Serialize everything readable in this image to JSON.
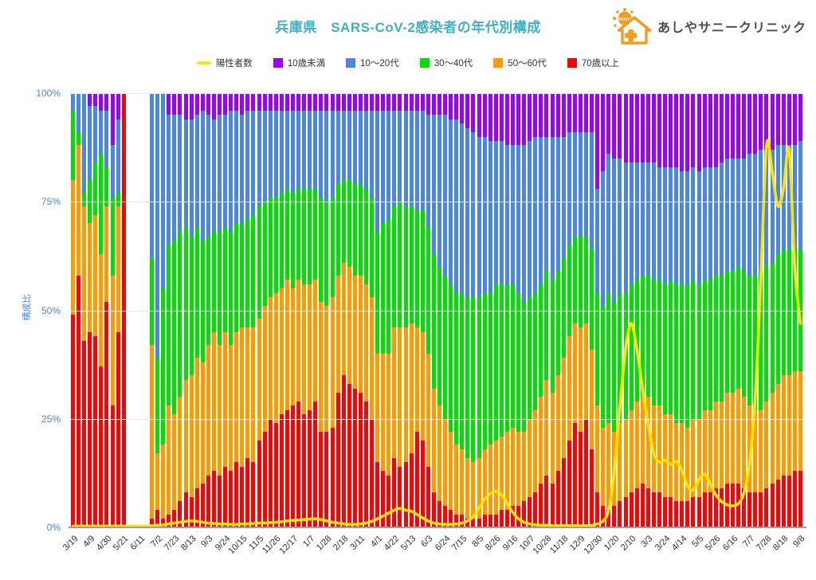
{
  "page": {
    "title": "兵庫県　SARS-CoV-2感染者の年代別構成"
  },
  "logo": {
    "text": "あしやサニークリニック",
    "sun_text": "Sunny",
    "icon_color": "#f29c1f",
    "text_color": "#4c4c4c"
  },
  "legend": {
    "items": [
      {
        "label": "陽性者数",
        "color": "#ffe600",
        "marker": "line"
      },
      {
        "label": "10歳未満",
        "color": "#9900ff",
        "marker": "square"
      },
      {
        "label": "10〜20代",
        "color": "#4a86e8",
        "marker": "square"
      },
      {
        "label": "30〜40代",
        "color": "#00e000",
        "marker": "square"
      },
      {
        "label": "50〜60代",
        "color": "#ff9900",
        "marker": "square"
      },
      {
        "label": "70歳以上",
        "color": "#ff0000",
        "marker": "square"
      }
    ]
  },
  "chart_data": {
    "type": "combo",
    "subtype": "100%-stacked-weekly-bars-with-line-overlay",
    "title": "兵庫県　SARS-CoV-2感染者の年代別構成",
    "grid": "horizontal-light-gray",
    "y_axis": {
      "label": "構成比",
      "range": [
        0,
        100
      ],
      "ticks": [
        {
          "label": "0%",
          "value": 0
        },
        {
          "label": "25%",
          "value": 25
        },
        {
          "label": "50%",
          "value": 50
        },
        {
          "label": "75%",
          "value": 75
        },
        {
          "label": "100%",
          "value": 100
        }
      ]
    },
    "x_axis": {
      "every_n_bars": 3,
      "tick_labels": [
        "3/19",
        "4/9",
        "4/30",
        "5/21",
        "6/11",
        "7/2",
        "7/23",
        "8/13",
        "9/3",
        "9/24",
        "10/15",
        "11/5",
        "11/26",
        "12/17",
        "1/7",
        "1/28",
        "2/18",
        "3/11",
        "4/1",
        "4/22",
        "5/13",
        "6/3",
        "6/24",
        "7/15",
        "8/5",
        "8/26",
        "9/16",
        "10/7",
        "10/28",
        "11/18",
        "12/9",
        "12/30",
        "1/20",
        "2/10",
        "3/3",
        "3/24",
        "4/14",
        "5/5",
        "5/26",
        "6/16",
        "7/7",
        "7/28",
        "8/18",
        "9/8"
      ]
    },
    "stack_order_bottom_to_top": [
      "70歳以上",
      "50〜60代",
      "30〜40代",
      "10〜20代",
      "10歳未満"
    ],
    "stack_colors": [
      "#ff0000",
      "#ff9900",
      "#00e000",
      "#4a86e8",
      "#9900ff"
    ],
    "bars_note": "each bar = [70歳以上,50〜60代,30〜40代,10〜20代,10歳未満] in % of weekly cases; null = week with no cases (gap)",
    "bars": [
      [
        49,
        31,
        16,
        4,
        0
      ],
      [
        58,
        30,
        3,
        9,
        0
      ],
      [
        43,
        31,
        3,
        23,
        0
      ],
      [
        45,
        25,
        10,
        17,
        3
      ],
      [
        44,
        28,
        12,
        13,
        3
      ],
      [
        37,
        26,
        23,
        10,
        4
      ],
      [
        52,
        22,
        9,
        13,
        4
      ],
      [
        28,
        30,
        18,
        12,
        12
      ],
      [
        45,
        29,
        3,
        17,
        6
      ],
      [
        100,
        0,
        0,
        0,
        0
      ],
      null,
      null,
      null,
      null,
      [
        2,
        40,
        20,
        38,
        0
      ],
      [
        4,
        13,
        22,
        61,
        0
      ],
      [
        2,
        17,
        36,
        45,
        0
      ],
      [
        3,
        25,
        37,
        30,
        5
      ],
      [
        4,
        22,
        40,
        29,
        5
      ],
      [
        6,
        24,
        38,
        27,
        5
      ],
      [
        8,
        26,
        35,
        25,
        6
      ],
      [
        7,
        28,
        32,
        27,
        6
      ],
      [
        9,
        30,
        30,
        26,
        5
      ],
      [
        10,
        28,
        28,
        30,
        4
      ],
      [
        12,
        30,
        25,
        28,
        5
      ],
      [
        13,
        32,
        23,
        26,
        6
      ],
      [
        12,
        30,
        26,
        27,
        5
      ],
      [
        14,
        31,
        24,
        26,
        5
      ],
      [
        13,
        29,
        26,
        28,
        4
      ],
      [
        15,
        30,
        25,
        26,
        4
      ],
      [
        14,
        32,
        24,
        25,
        5
      ],
      [
        16,
        30,
        25,
        25,
        4
      ],
      [
        15,
        31,
        26,
        24,
        4
      ],
      [
        20,
        28,
        26,
        22,
        4
      ],
      [
        22,
        29,
        24,
        21,
        4
      ],
      [
        25,
        28,
        23,
        20,
        4
      ],
      [
        24,
        30,
        22,
        20,
        4
      ],
      [
        26,
        29,
        22,
        19,
        4
      ],
      [
        27,
        30,
        21,
        18,
        4
      ],
      [
        28,
        27,
        22,
        19,
        4
      ],
      [
        29,
        28,
        21,
        18,
        4
      ],
      [
        26,
        30,
        22,
        18,
        4
      ],
      [
        27,
        29,
        22,
        18,
        4
      ],
      [
        29,
        28,
        21,
        18,
        4
      ],
      [
        22,
        30,
        24,
        20,
        4
      ],
      [
        22,
        29,
        24,
        21,
        4
      ],
      [
        23,
        30,
        23,
        20,
        4
      ],
      [
        31,
        27,
        21,
        17,
        4
      ],
      [
        35,
        26,
        19,
        16,
        4
      ],
      [
        33,
        27,
        20,
        16,
        4
      ],
      [
        32,
        26,
        21,
        17,
        4
      ],
      [
        31,
        27,
        21,
        17,
        4
      ],
      [
        29,
        27,
        22,
        18,
        4
      ],
      [
        25,
        28,
        23,
        20,
        4
      ],
      [
        15,
        25,
        28,
        28,
        4
      ],
      [
        13,
        27,
        30,
        26,
        4
      ],
      [
        12,
        28,
        31,
        25,
        4
      ],
      [
        16,
        30,
        28,
        22,
        4
      ],
      [
        14,
        32,
        29,
        21,
        4
      ],
      [
        15,
        31,
        28,
        22,
        4
      ],
      [
        17,
        30,
        27,
        22,
        4
      ],
      [
        22,
        24,
        27,
        23,
        4
      ],
      [
        20,
        25,
        28,
        23,
        4
      ],
      [
        14,
        26,
        29,
        26,
        5
      ],
      [
        8,
        24,
        31,
        32,
        5
      ],
      [
        6,
        22,
        32,
        35,
        5
      ],
      [
        5,
        20,
        33,
        37,
        5
      ],
      [
        4,
        18,
        34,
        38,
        6
      ],
      [
        3,
        16,
        35,
        40,
        6
      ],
      [
        3,
        15,
        36,
        39,
        7
      ],
      [
        2,
        14,
        37,
        39,
        8
      ],
      [
        2,
        13,
        38,
        38,
        9
      ],
      [
        2,
        14,
        37,
        37,
        10
      ],
      [
        3,
        15,
        36,
        36,
        10
      ],
      [
        3,
        16,
        35,
        35,
        11
      ],
      [
        3,
        17,
        36,
        33,
        11
      ],
      [
        4,
        17,
        35,
        33,
        11
      ],
      [
        4,
        18,
        34,
        32,
        12
      ],
      [
        5,
        18,
        33,
        32,
        12
      ],
      [
        5,
        17,
        32,
        34,
        12
      ],
      [
        6,
        16,
        30,
        36,
        12
      ],
      [
        7,
        18,
        28,
        36,
        11
      ],
      [
        8,
        19,
        27,
        36,
        10
      ],
      [
        10,
        20,
        26,
        34,
        10
      ],
      [
        12,
        22,
        25,
        31,
        10
      ],
      [
        10,
        21,
        26,
        33,
        10
      ],
      [
        13,
        22,
        24,
        31,
        10
      ],
      [
        16,
        23,
        23,
        28,
        10
      ],
      [
        20,
        24,
        21,
        26,
        9
      ],
      [
        24,
        23,
        20,
        24,
        9
      ],
      [
        22,
        24,
        21,
        24,
        9
      ],
      [
        25,
        22,
        20,
        24,
        9
      ],
      [
        18,
        23,
        23,
        27,
        9
      ],
      [
        8,
        20,
        26,
        24,
        22
      ],
      [
        5,
        18,
        28,
        31,
        18
      ],
      [
        4,
        20,
        30,
        32,
        14
      ],
      [
        5,
        17,
        30,
        33,
        15
      ],
      [
        6,
        18,
        30,
        31,
        15
      ],
      [
        7,
        18,
        29,
        30,
        16
      ],
      [
        8,
        19,
        29,
        28,
        16
      ],
      [
        9,
        20,
        28,
        27,
        16
      ],
      [
        10,
        20,
        28,
        26,
        16
      ],
      [
        9,
        21,
        28,
        26,
        16
      ],
      [
        8,
        20,
        29,
        27,
        16
      ],
      [
        8,
        20,
        29,
        26,
        17
      ],
      [
        7,
        19,
        30,
        27,
        17
      ],
      [
        7,
        19,
        31,
        26,
        17
      ],
      [
        6,
        18,
        32,
        27,
        17
      ],
      [
        6,
        18,
        32,
        26,
        18
      ],
      [
        6,
        17,
        33,
        26,
        18
      ],
      [
        7,
        18,
        32,
        26,
        17
      ],
      [
        7,
        18,
        31,
        26,
        18
      ],
      [
        8,
        19,
        30,
        26,
        17
      ],
      [
        8,
        19,
        30,
        26,
        17
      ],
      [
        9,
        20,
        29,
        25,
        17
      ],
      [
        9,
        20,
        29,
        26,
        16
      ],
      [
        10,
        21,
        28,
        26,
        15
      ],
      [
        10,
        21,
        28,
        26,
        15
      ],
      [
        10,
        22,
        28,
        25,
        15
      ],
      [
        9,
        21,
        29,
        26,
        15
      ],
      [
        8,
        20,
        30,
        28,
        14
      ],
      [
        8,
        19,
        31,
        28,
        14
      ],
      [
        8,
        19,
        32,
        28,
        13
      ],
      [
        9,
        20,
        31,
        27,
        13
      ],
      [
        10,
        21,
        30,
        26,
        13
      ],
      [
        11,
        22,
        30,
        25,
        12
      ],
      [
        12,
        23,
        29,
        24,
        12
      ],
      [
        12,
        23,
        29,
        24,
        12
      ],
      [
        13,
        23,
        28,
        24,
        12
      ],
      [
        13,
        23,
        28,
        25,
        11
      ]
    ],
    "line_series": {
      "name": "陽性者数",
      "color": "#ffe600",
      "unit": "% of left axis height (case counts, no numeric right axis shown)",
      "values": [
        0.3,
        0.3,
        0.3,
        0.3,
        0.3,
        0.3,
        0.3,
        0.3,
        0.3,
        0.3,
        0.3,
        0.3,
        0.3,
        0.3,
        0.4,
        0.5,
        0.6,
        0.8,
        1.0,
        1.2,
        1.4,
        1.5,
        1.4,
        1.2,
        1.0,
        0.9,
        0.8,
        0.8,
        0.7,
        0.7,
        0.8,
        0.8,
        0.9,
        1.0,
        1.0,
        1.1,
        1.2,
        1.3,
        1.5,
        1.6,
        1.7,
        1.8,
        1.9,
        2.0,
        1.8,
        1.5,
        1.2,
        1.0,
        0.8,
        0.7,
        0.7,
        0.8,
        1.0,
        1.4,
        2.0,
        2.6,
        3.3,
        4.0,
        4.4,
        4.0,
        3.7,
        3.0,
        2.2,
        1.5,
        1.0,
        0.8,
        0.7,
        0.7,
        0.8,
        1.0,
        1.5,
        2.5,
        4.5,
        6.5,
        7.8,
        8.3,
        7.5,
        5.5,
        3.5,
        2.0,
        1.2,
        0.8,
        0.6,
        0.5,
        0.5,
        0.4,
        0.4,
        0.4,
        0.4,
        0.4,
        0.4,
        0.4,
        0.5,
        0.8,
        1.5,
        4.0,
        13,
        28,
        41,
        47,
        41,
        32,
        24,
        17,
        15,
        15.5,
        14.5,
        15.2,
        13,
        9.5,
        8.6,
        11,
        12.3,
        10,
        7.5,
        6.0,
        5.2,
        5.0,
        5.5,
        8.0,
        15,
        30,
        58,
        88,
        82,
        74,
        78,
        87,
        60,
        47
      ]
    }
  }
}
